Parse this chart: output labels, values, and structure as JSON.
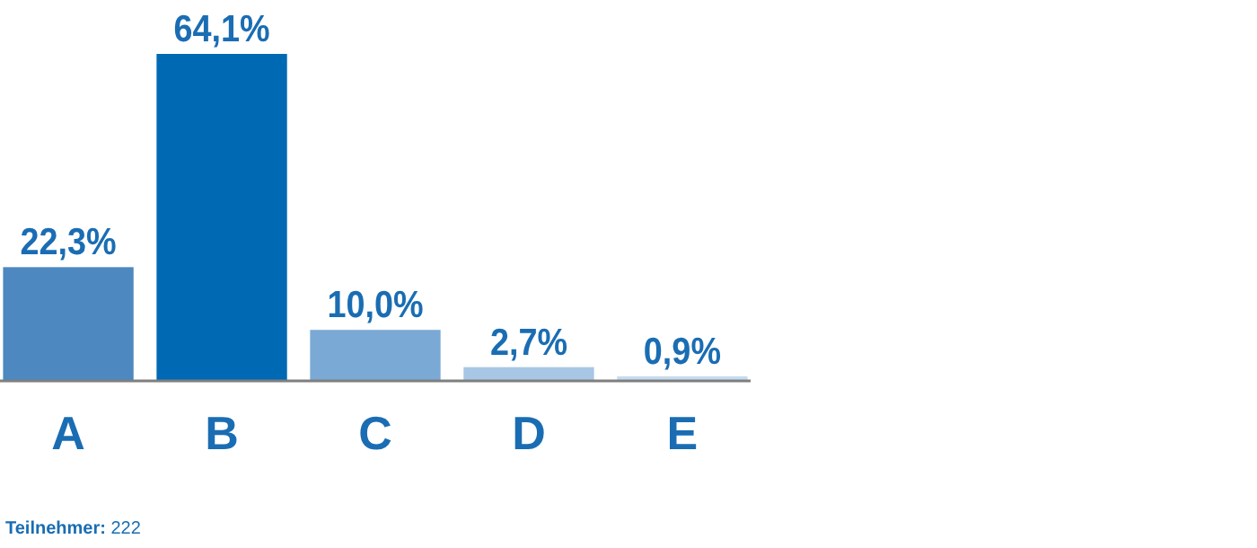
{
  "chart_data": {
    "type": "bar",
    "categories": [
      "A",
      "B",
      "C",
      "D",
      "E"
    ],
    "values": [
      22.3,
      64.1,
      10.0,
      2.7,
      0.9
    ],
    "colors": [
      "#4d88c0",
      "#0069b4",
      "#7ba9d5",
      "#a8c6e5",
      "#c5dbef"
    ],
    "value_labels": [
      "22,3%",
      "64,1%",
      "10,0%",
      "2,7%",
      "0,9%"
    ],
    "annotations": [
      "Teilnehmer: 222"
    ]
  }
}
